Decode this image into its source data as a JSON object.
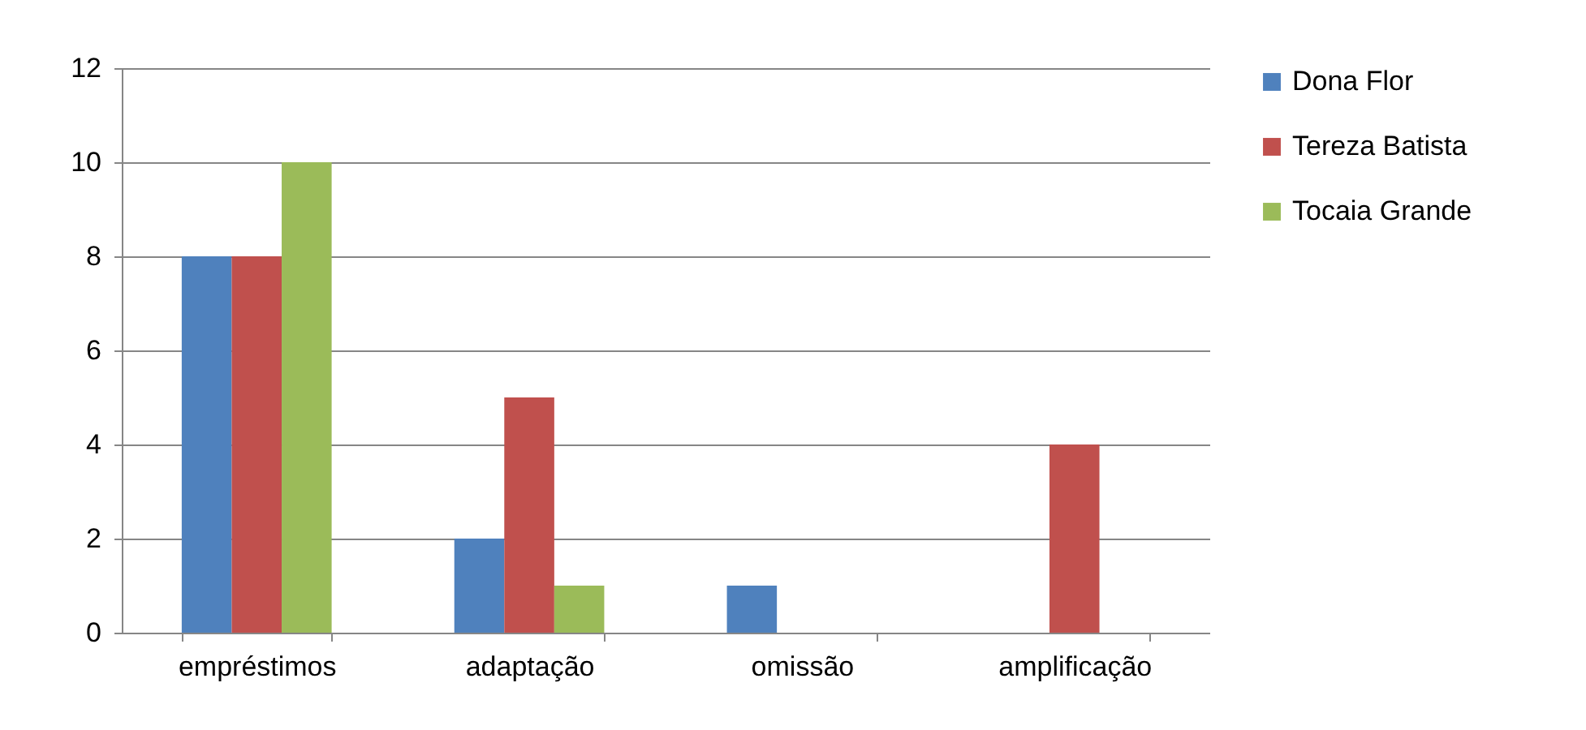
{
  "chart_data": {
    "type": "bar",
    "categories": [
      "empréstimos",
      "adaptação",
      "omissão",
      "amplificação"
    ],
    "series": [
      {
        "name": "Dona Flor",
        "color": "#4f81bd",
        "values": [
          8,
          2,
          1,
          0
        ]
      },
      {
        "name": "Tereza Batista",
        "color": "#c0504d",
        "values": [
          8,
          5,
          0,
          4
        ]
      },
      {
        "name": "Tocaia Grande",
        "color": "#9bbb59",
        "values": [
          10,
          1,
          0,
          0
        ]
      }
    ],
    "ylim": [
      0,
      12
    ],
    "yticks": [
      0,
      2,
      4,
      6,
      8,
      10,
      12
    ],
    "grid": "y",
    "legend": "right"
  }
}
